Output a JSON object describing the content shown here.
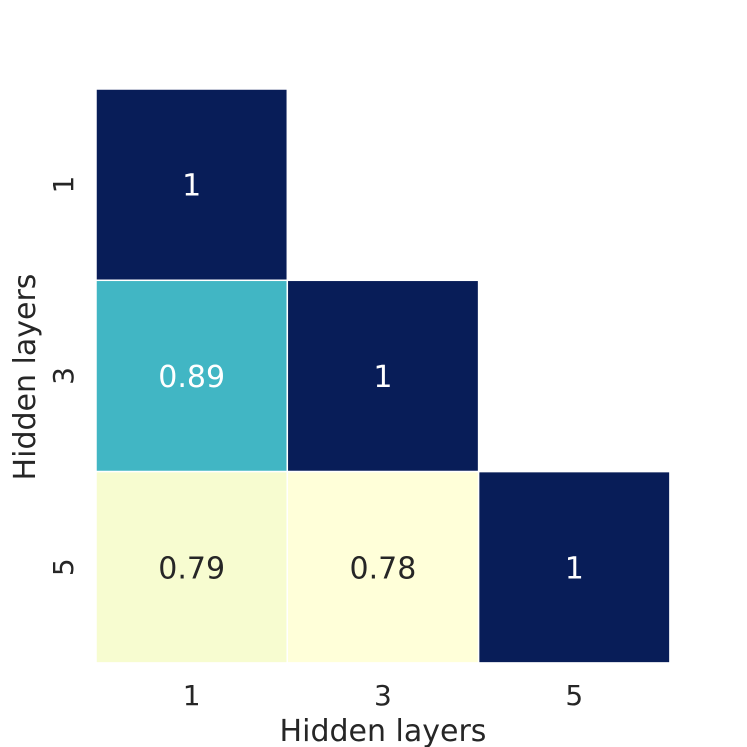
{
  "chart_data": {
    "type": "heatmap",
    "title": "",
    "xlabel": "Hidden layers",
    "ylabel": "Hidden layers",
    "x_categories": [
      "1",
      "3",
      "5"
    ],
    "y_categories": [
      "1",
      "3",
      "5"
    ],
    "mask": "upper-triangle",
    "cells": [
      {
        "row": 0,
        "col": 0,
        "value": 1,
        "label": "1",
        "color": "#081d58",
        "text_color": "#ffffff"
      },
      {
        "row": 1,
        "col": 0,
        "value": 0.89,
        "label": "0.89",
        "color": "#41b6c4",
        "text_color": "#ffffff"
      },
      {
        "row": 1,
        "col": 1,
        "value": 1,
        "label": "1",
        "color": "#081d58",
        "text_color": "#ffffff"
      },
      {
        "row": 2,
        "col": 0,
        "value": 0.79,
        "label": "0.79",
        "color": "#f7fcd0",
        "text_color": "#262626"
      },
      {
        "row": 2,
        "col": 1,
        "value": 0.78,
        "label": "0.78",
        "color": "#ffffd9",
        "text_color": "#262626"
      },
      {
        "row": 2,
        "col": 2,
        "value": 1,
        "label": "1",
        "color": "#081d58",
        "text_color": "#ffffff"
      }
    ],
    "colormap": "YlGnBu",
    "colorbar": false,
    "cell_separator_color": "#ffffff"
  }
}
